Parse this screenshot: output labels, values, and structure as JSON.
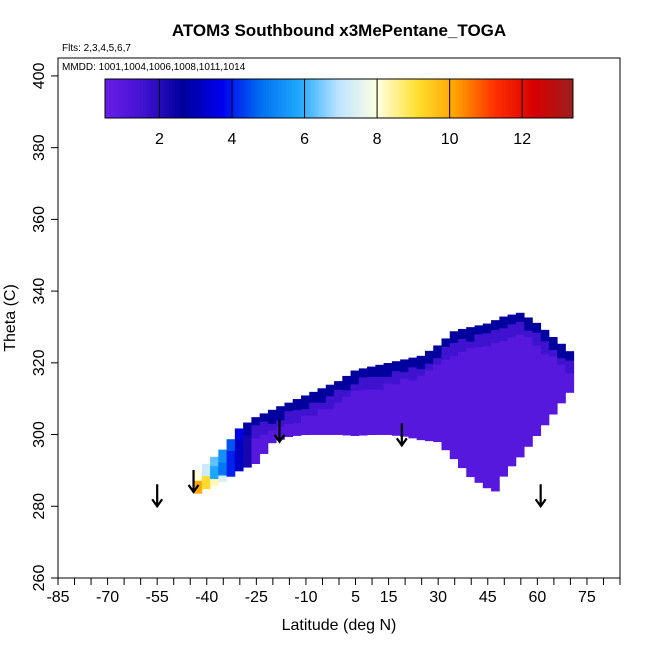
{
  "chart_data": {
    "type": "heatmap",
    "title": "ATOM3 Southbound x3MePentane_TOGA",
    "subtitle_flights": "Flts: 2,3,4,5,6,7",
    "subtitle_dates": "MMDD: 1001,1004,1006,1008,1011,1014",
    "xlabel": "Latitude (deg N)",
    "ylabel": "Theta (C)",
    "xlim": [
      -85,
      85
    ],
    "ylim": [
      260,
      405
    ],
    "x_tick_labels": [
      "-85",
      "-70",
      "-55",
      "-40",
      "-25",
      "-10",
      "5",
      "15",
      "30",
      "45",
      "60",
      "75"
    ],
    "y_tick_labels": [
      "260",
      "280",
      "300",
      "320",
      "340",
      "360",
      "380",
      "400"
    ],
    "colorbar": {
      "range": [
        0.5,
        13.4
      ],
      "tick_labels": [
        "2",
        "4",
        "6",
        "8",
        "10",
        "12"
      ],
      "colors": [
        "#6a1ee8",
        "#4012d0",
        "#00009c",
        "#0000ee",
        "#0070f0",
        "#22aaff",
        "#bfe4ff",
        "#ffffe0",
        "#ffe030",
        "#ffa000",
        "#ff3000",
        "#d80000",
        "#9c2020"
      ]
    },
    "grid": false,
    "profile_arrows": [
      {
        "lat": -55,
        "theta": 280
      },
      {
        "lat": -44,
        "theta": 284
      },
      {
        "lat": -18,
        "theta": 298
      },
      {
        "lat": 19,
        "theta": 297
      },
      {
        "lat": 61,
        "theta": 280
      }
    ],
    "field_summary": {
      "lat_range": [
        -44,
        71
      ],
      "theta_range": [
        282,
        336
      ],
      "background_value": 1.0,
      "high_values_region": "southern edge near -44 to -30 deg N, theta 283-295, values 6-10",
      "dark_band": "upper edge theta 310-330, values ~2-3"
    }
  }
}
